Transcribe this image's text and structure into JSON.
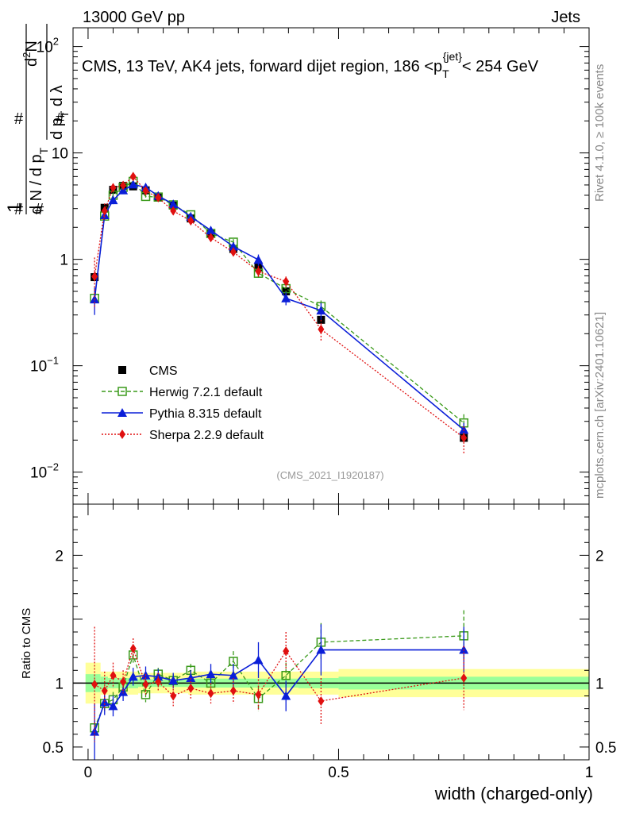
{
  "header": {
    "beam": "13000 GeV pp",
    "process": "Jets",
    "rivet_label": "Rivet 4.1.0, ≥ 100k events",
    "site_label": "mcplots.cern.ch [arXiv:2401.10621]"
  },
  "chart_data": [
    {
      "type": "line",
      "panel": "main",
      "title": "CMS, 13 TeV, AK4 jets, forward dijet region, 186 <p_T^{jet}< 254 GeV",
      "title_parts": {
        "pre": "CMS, 13 TeV, AK4 jets, forward dijet region, 186 <p",
        "sub": "T",
        "sup": "{jet}",
        "post": "< 254 GeV"
      },
      "ylabel": "1/dN/dpT · d²N/dpT dλ",
      "ylabel_parts": {
        "one": "1",
        "num_left": "d N / d p",
        "sub_t": "T",
        "sq": "2",
        "dn": "N",
        "dpt": "d p",
        "dl": "d λ"
      },
      "yscale": "log",
      "ylim": [
        0.005,
        150
      ],
      "yticks": [
        {
          "value": 0.01,
          "label": "10",
          "exp": "−2"
        },
        {
          "value": 0.1,
          "label": "10",
          "exp": "−1"
        },
        {
          "value": 1,
          "label": "1",
          "exp": ""
        },
        {
          "value": 10,
          "label": "10",
          "exp": ""
        },
        {
          "value": 100,
          "label": "10",
          "exp": "2"
        }
      ],
      "xlim": [
        -0.03,
        1.0
      ],
      "watermark": "(CMS_2021_I1920187)",
      "legend_position": "lower-left",
      "x": [
        0.013,
        0.033,
        0.05,
        0.07,
        0.09,
        0.115,
        0.14,
        0.17,
        0.205,
        0.245,
        0.29,
        0.34,
        0.395,
        0.465,
        0.75
      ],
      "series": [
        {
          "name": "CMS",
          "color": "#000000",
          "marker": "square",
          "line": "none",
          "values": [
            0.68,
            3.05,
            4.5,
            4.9,
            4.85,
            4.45,
            3.8,
            3.2,
            2.42,
            1.75,
            1.25,
            0.84,
            0.5,
            0.27,
            0.021
          ]
        },
        {
          "name": "Herwig 7.2.1 default",
          "color": "#3a9a1a",
          "marker": "open-square",
          "line": "dashed",
          "values": [
            0.43,
            2.55,
            4.0,
            4.75,
            5.4,
            3.9,
            3.85,
            3.25,
            2.62,
            1.75,
            1.45,
            0.74,
            0.53,
            0.36,
            0.029
          ]
        },
        {
          "name": "Pythia 8.315 default",
          "color": "#0a1ed8",
          "marker": "triangle",
          "line": "solid",
          "values": [
            0.42,
            2.6,
            3.6,
            4.45,
            5.05,
            4.75,
            3.95,
            3.3,
            2.52,
            1.87,
            1.32,
            0.99,
            0.43,
            0.33,
            0.025
          ]
        },
        {
          "name": "Sherpa 2.2.9 default",
          "color": "#e01010",
          "marker": "diamond",
          "line": "dotted",
          "values": [
            0.69,
            2.85,
            4.7,
            4.95,
            6.0,
            4.4,
            3.8,
            2.85,
            2.3,
            1.6,
            1.17,
            0.77,
            0.62,
            0.22,
            0.021
          ]
        }
      ],
      "errors": {
        "Herwig 7.2.1 default": [
          0.05,
          0.2,
          0.25,
          0.2,
          0.3,
          0.25,
          0.2,
          0.15,
          0.15,
          0.1,
          0.1,
          0.07,
          0.05,
          0.05,
          0.006
        ],
        "Pythia 8.315 default": [
          0.12,
          0.25,
          0.3,
          0.3,
          0.35,
          0.3,
          0.25,
          0.2,
          0.2,
          0.15,
          0.12,
          0.12,
          0.06,
          0.06,
          0.004
        ],
        "Sherpa 2.2.9 default": [
          0.35,
          0.5,
          0.45,
          0.4,
          0.45,
          0.35,
          0.3,
          0.25,
          0.2,
          0.15,
          0.12,
          0.1,
          0.07,
          0.05,
          0.006
        ]
      }
    },
    {
      "type": "line",
      "panel": "ratio",
      "ylabel": "Ratio to CMS",
      "ylim": [
        0.4,
        2.4
      ],
      "yticks": [
        {
          "value": 0.5,
          "label": "0.5"
        },
        {
          "value": 1,
          "label": "1"
        },
        {
          "value": 2,
          "label": "2"
        }
      ],
      "xlabel": "width (charged-only)",
      "xlim": [
        -0.03,
        1.0
      ],
      "xticks": [
        {
          "value": 0,
          "label": "0"
        },
        {
          "value": 0.5,
          "label": "0.5"
        },
        {
          "value": 1,
          "label": "1"
        }
      ],
      "band_bins": [
        {
          "x0": -0.005,
          "x1": 0.025,
          "stat": 0.07,
          "tot": 0.16
        },
        {
          "x0": 0.025,
          "x1": 0.04,
          "stat": 0.05,
          "tot": 0.09
        },
        {
          "x0": 0.04,
          "x1": 0.1,
          "stat": 0.04,
          "tot": 0.09
        },
        {
          "x0": 0.1,
          "x1": 0.2,
          "stat": 0.03,
          "tot": 0.08
        },
        {
          "x0": 0.2,
          "x1": 0.42,
          "stat": 0.035,
          "tot": 0.09
        },
        {
          "x0": 0.42,
          "x1": 0.5,
          "stat": 0.04,
          "tot": 0.09
        },
        {
          "x0": 0.5,
          "x1": 1.0,
          "stat": 0.05,
          "tot": 0.11
        }
      ],
      "x": [
        0.013,
        0.033,
        0.05,
        0.07,
        0.09,
        0.115,
        0.14,
        0.17,
        0.205,
        0.245,
        0.29,
        0.34,
        0.395,
        0.465,
        0.75
      ],
      "series": [
        {
          "name": "Herwig 7.2.1 default",
          "color": "#3a9a1a",
          "marker": "open-square",
          "line": "dashed",
          "values": [
            0.65,
            0.84,
            0.87,
            0.97,
            1.22,
            0.91,
            1.07,
            1.02,
            1.1,
            1.0,
            1.17,
            0.88,
            1.06,
            1.32,
            1.37
          ]
        },
        {
          "name": "Pythia 8.315 default",
          "color": "#0a1ed8",
          "marker": "triangle",
          "line": "solid",
          "values": [
            0.62,
            0.85,
            0.82,
            0.93,
            1.05,
            1.06,
            1.05,
            1.02,
            1.04,
            1.07,
            1.06,
            1.18,
            0.9,
            1.26,
            1.26
          ]
        },
        {
          "name": "Sherpa 2.2.9 default",
          "color": "#e01010",
          "marker": "diamond",
          "line": "dotted",
          "values": [
            0.99,
            0.94,
            1.06,
            1.01,
            1.27,
            0.99,
            1.01,
            0.9,
            0.96,
            0.92,
            0.94,
            0.91,
            1.25,
            0.86,
            1.04
          ]
        }
      ],
      "errors": {
        "Herwig 7.2.1 default": [
          0.06,
          0.06,
          0.06,
          0.05,
          0.06,
          0.06,
          0.05,
          0.05,
          0.05,
          0.06,
          0.08,
          0.1,
          0.1,
          0.15,
          0.2
        ],
        "Pythia 8.315 default": [
          0.22,
          0.1,
          0.08,
          0.07,
          0.07,
          0.07,
          0.06,
          0.06,
          0.06,
          0.08,
          0.09,
          0.14,
          0.12,
          0.2,
          0.18
        ],
        "Sherpa 2.2.9 default": [
          0.45,
          0.15,
          0.1,
          0.09,
          0.08,
          0.08,
          0.07,
          0.08,
          0.08,
          0.08,
          0.1,
          0.12,
          0.15,
          0.18,
          0.25
        ]
      }
    }
  ]
}
